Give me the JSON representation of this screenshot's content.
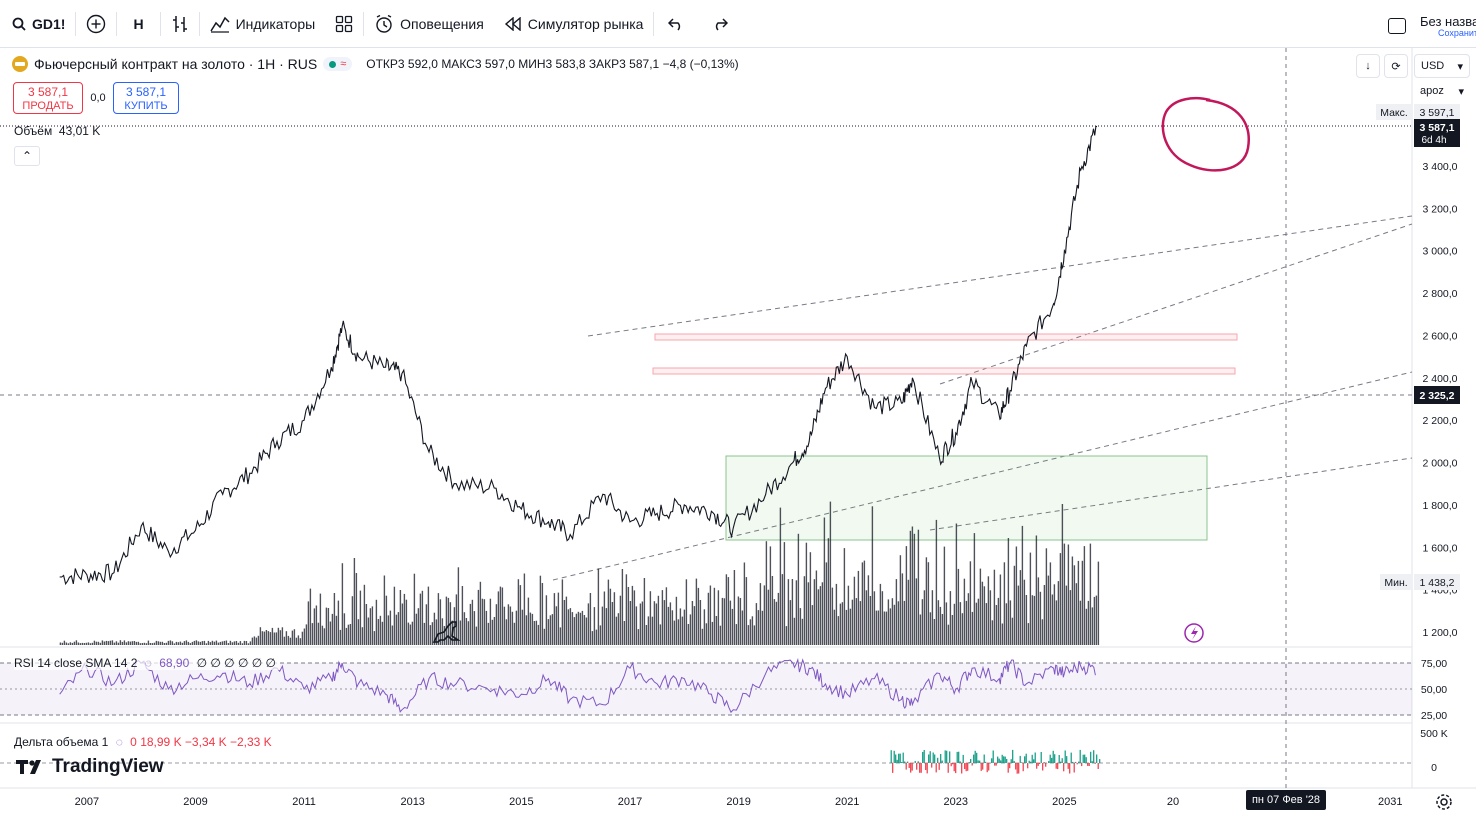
{
  "toolbar": {
    "symbol": "GD1!",
    "interval": "H",
    "indicators": "Индикаторы",
    "alerts": "Оповещения",
    "replay": "Симулятор рынка"
  },
  "layout": {
    "title": "Без назва",
    "saved": "Сохранит"
  },
  "legend": {
    "name": "Фьючерсный контракт на золото · 1H · RUS",
    "open_label": "ОТКР",
    "open": "3 592,0",
    "high_label": "МАКС",
    "high": "3 597,0",
    "low_label": "МИН",
    "low": "3 583,8",
    "close_label": "ЗАКР",
    "close": "3 587,1",
    "change": "−4,8 (−0,13%)"
  },
  "trade": {
    "sell_price": "3 587,1",
    "sell_label": "ПРОДАТЬ",
    "spread": "0,0",
    "buy_price": "3 587,1",
    "buy_label": "КУПИТЬ"
  },
  "volume": {
    "label": "Объём",
    "value": "43,01 K"
  },
  "rsi": {
    "label": "RSI 14 close SMA 14 2",
    "value": "68,90",
    "nulls": "∅ ∅ ∅ ∅ ∅ ∅"
  },
  "delta": {
    "label": "Дельта объема 1",
    "v0": "0",
    "v1": "18,99 K",
    "v2": "−3,34 K",
    "v3": "−2,33 K"
  },
  "axis": {
    "currency": "USD",
    "scale": "apoz",
    "max_label": "Макс.",
    "max_value": "3 597,1",
    "last_price": "3 587,1",
    "countdown": "6d 4h",
    "cross_price": "2 325,2",
    "min_label": "Мин.",
    "min_value": "1 438,2",
    "price_ticks": [
      "3 400,0",
      "3 200,0",
      "3 000,0",
      "2 800,0",
      "2 600,0",
      "2 400,0",
      "2 200,0",
      "2 000,0",
      "1 800,0",
      "1 600,0",
      "1 400,0",
      "1 200,0"
    ],
    "rsi_ticks": [
      "75,00",
      "50,00",
      "25,00"
    ],
    "delta_ticks": [
      "500 K",
      "0"
    ],
    "time_ticks": [
      "2007",
      "2009",
      "2011",
      "2013",
      "2015",
      "2017",
      "2019",
      "2021",
      "2023",
      "2025",
      "20",
      "29",
      "2031"
    ],
    "cursor_date": "пн 07 Фев '28"
  },
  "brand": "TradingView",
  "colors": {
    "accent": "#2962ff",
    "down": "#f23645",
    "up": "#089981",
    "rsi": "#7e57c2",
    "annotation": "#c2185b"
  },
  "chart_data": {
    "type": "line",
    "title": "Фьючерсный контракт на золото · 1H · RUS",
    "series": [
      {
        "x": [
          2006.5,
          2007,
          2007.5,
          2008,
          2008.5,
          2009,
          2009.5,
          2010,
          2010.5,
          2011,
          2011.5,
          2011.7,
          2012,
          2012.5,
          2012.8,
          2013.3,
          2013.8,
          2014.5,
          2015,
          2015.5,
          2015.9,
          2016.5,
          2017,
          2017.5,
          2018,
          2018.5,
          2018.9,
          2019.5,
          2020,
          2020.3,
          2020.6,
          2021,
          2021.5,
          2022,
          2022.2,
          2022.7,
          2023,
          2023.3,
          2023.8,
          2024,
          2024.3,
          2024.8,
          2025,
          2025.3,
          2025.6
        ],
        "values": [
          1460,
          1470,
          1480,
          1700,
          1580,
          1680,
          1850,
          1950,
          2100,
          2200,
          2450,
          2640,
          2500,
          2450,
          2420,
          2050,
          1900,
          1880,
          1780,
          1720,
          1660,
          1850,
          1720,
          1760,
          1800,
          1770,
          1690,
          1850,
          2000,
          2100,
          2350,
          2500,
          2260,
          2280,
          2400,
          2020,
          2140,
          2380,
          2220,
          2340,
          2550,
          2750,
          3000,
          3380,
          3587
        ]
      }
    ],
    "ylim": [
      1100,
      3700
    ],
    "xlim": [
      2005.4,
      2031.4
    ],
    "rsi": [
      45,
      70,
      55,
      75,
      50,
      60,
      65,
      55,
      70,
      50,
      60,
      75,
      55,
      45,
      30,
      60,
      55,
      50,
      45,
      60,
      40,
      35,
      70,
      55,
      60,
      45,
      30,
      65,
      75,
      70,
      55,
      45,
      60,
      40,
      35,
      65,
      50,
      70,
      60,
      75,
      55,
      70,
      65,
      72,
      69
    ],
    "rsi_ylim": [
      20,
      80
    ],
    "levels": [
      2600,
      2420
    ],
    "range_box": {
      "x": [
        2013.5,
        2026.0
      ],
      "y": [
        1630,
        2030
      ]
    }
  }
}
